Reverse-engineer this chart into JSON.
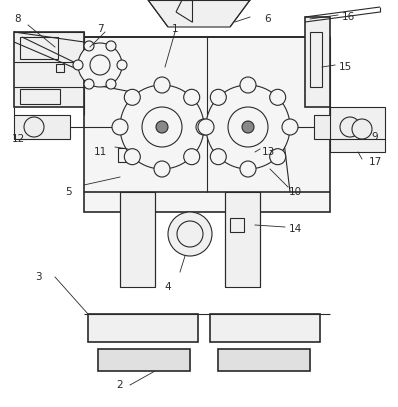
{
  "fig_width": 3.98,
  "fig_height": 4.07,
  "dpi": 100,
  "bg_color": "#ffffff",
  "line_color": "#2a2a2a",
  "lw": 0.8,
  "lw2": 1.2,
  "label_fs": 7.5
}
